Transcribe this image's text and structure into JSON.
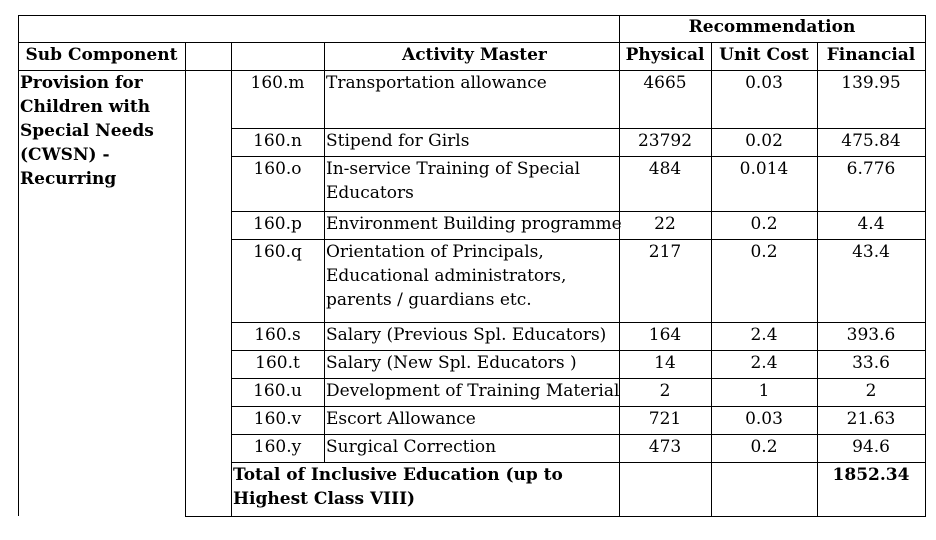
{
  "table": {
    "group_header": "Recommendation",
    "columns": {
      "sub_component": "Sub Component",
      "code": "",
      "activity": "Activity Master",
      "physical": "Physical",
      "unit_cost": "Unit Cost",
      "financial": "Financial"
    },
    "sub_component_lines": [
      "Provision for",
      "Children with",
      "Special Needs",
      "(CWSN) -",
      "Recurring"
    ],
    "rows": [
      {
        "code": "160.m",
        "activity": [
          "Transportation allowance"
        ],
        "physical": "4665",
        "unit_cost": "0.03",
        "financial": "139.95"
      },
      {
        "code": "160.n",
        "activity": [
          "Stipend for Girls"
        ],
        "physical": "23792",
        "unit_cost": "0.02",
        "financial": "475.84"
      },
      {
        "code": "160.o",
        "activity": [
          "In-service Training of Special",
          "Educators"
        ],
        "physical": "484",
        "unit_cost": "0.014",
        "financial": "6.776"
      },
      {
        "code": "160.p",
        "activity": [
          "Environment Building programme"
        ],
        "physical": "22",
        "unit_cost": "0.2",
        "financial": "4.4"
      },
      {
        "code": "160.q",
        "activity": [
          "Orientation of Principals,",
          "Educational administrators,",
          "parents / guardians etc."
        ],
        "physical": "217",
        "unit_cost": "0.2",
        "financial": "43.4"
      },
      {
        "code": "160.s",
        "activity": [
          "Salary (Previous Spl. Educators)"
        ],
        "physical": "164",
        "unit_cost": "2.4",
        "financial": "393.6"
      },
      {
        "code": "160.t",
        "activity": [
          "Salary (New Spl. Educators )"
        ],
        "physical": "14",
        "unit_cost": "2.4",
        "financial": "33.6"
      },
      {
        "code": "160.u",
        "activity": [
          "Development of Training Material"
        ],
        "physical": "2",
        "unit_cost": "1",
        "financial": "2"
      },
      {
        "code": "160.v",
        "activity": [
          "Escort Allowance"
        ],
        "physical": "721",
        "unit_cost": "0.03",
        "financial": "21.63"
      },
      {
        "code": "160.y",
        "activity": [
          "Surgical Correction"
        ],
        "physical": "473",
        "unit_cost": "0.2",
        "financial": "94.6"
      }
    ],
    "total": {
      "label_lines": [
        "Total of Inclusive Education (up to",
        "Highest Class VIII)"
      ],
      "financial": "1852.34"
    }
  }
}
